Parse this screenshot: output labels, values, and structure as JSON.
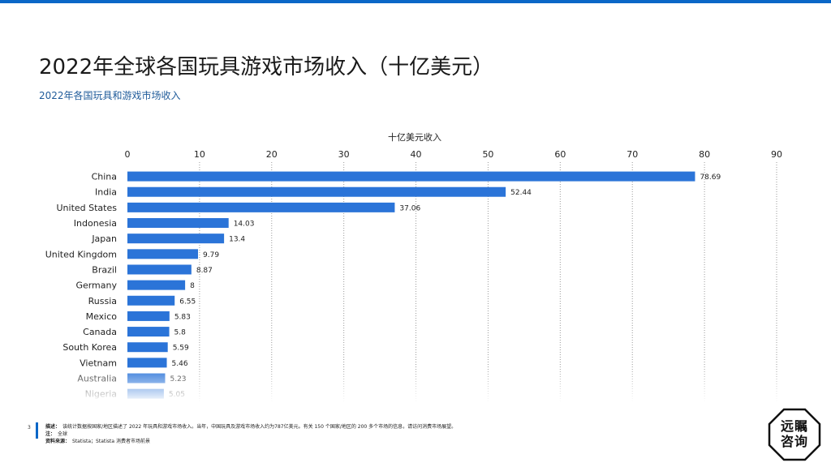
{
  "header": {
    "title": "2022年全球各国玩具游戏市场收入（十亿美元）",
    "subtitle": "2022年各国玩具和游戏市场收入"
  },
  "chart_data": {
    "type": "bar",
    "orientation": "horizontal",
    "xlabel": "十亿美元收入",
    "xlim": [
      0,
      90
    ],
    "xticks": [
      "0",
      "10",
      "20",
      "30",
      "40",
      "50",
      "60",
      "70",
      "80",
      "90"
    ],
    "categories": [
      "China",
      "India",
      "United States",
      "Indonesia",
      "Japan",
      "United Kingdom",
      "Brazil",
      "Germany",
      "Russia",
      "Mexico",
      "Canada",
      "South Korea",
      "Vietnam",
      "Australia",
      "Nigeria"
    ],
    "values": [
      78.69,
      52.44,
      37.06,
      14.03,
      13.4,
      9.79,
      8.87,
      8,
      6.55,
      5.83,
      5.8,
      5.59,
      5.46,
      5.23,
      5.05
    ],
    "value_labels": [
      "78.69",
      "52.44",
      "37.06",
      "14.03",
      "13.4",
      "9.79",
      "8.87",
      "8",
      "6.55",
      "5.83",
      "5.8",
      "5.59",
      "5.46",
      "5.23",
      "5.05"
    ],
    "grid": true,
    "bar_color": "#2b74d8"
  },
  "footer": {
    "page_number": "3",
    "desc_label": "描述：",
    "desc_text": "该统计数据按国家/地区描述了 2022 年玩具和游戏市场收入。当年，中国玩具及游戏市场收入约为787亿美元。有关 150 个国家/地区的 200 多个市场的信息，请访问消费市场展望。",
    "note_label": "注：",
    "note_text": "全球",
    "source_label": "资料来源：",
    "source_text": "Statista；Statista 消费者市场前景"
  },
  "logo": {
    "line1": "远瞩",
    "line2": "咨询"
  },
  "colors": {
    "accent": "#0a67c7",
    "bar": "#2b74d8"
  }
}
